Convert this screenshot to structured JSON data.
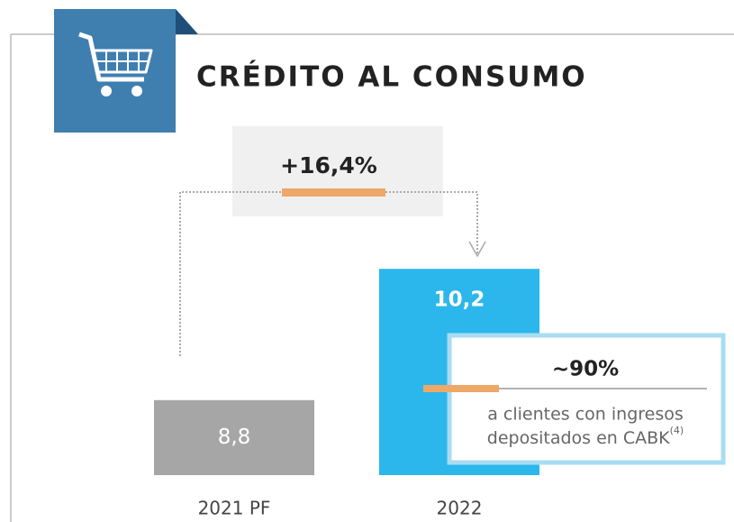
{
  "chart_data": {
    "type": "bar",
    "title": "CRÉDITO AL CONSUMO",
    "categories": [
      "2021 PF",
      "2022"
    ],
    "values": [
      8.8,
      10.2
    ],
    "value_labels": [
      "8,8",
      "10,2"
    ],
    "colors": [
      "#a6a6a6",
      "#2bb7ec"
    ],
    "ylim": [
      8,
      10.5
    ],
    "growth_label": "+16,4%",
    "share_label": "~90%",
    "note_lines": [
      "a clientes con ingresos",
      "depositados en CABK"
    ],
    "note_ref": "(4)"
  }
}
